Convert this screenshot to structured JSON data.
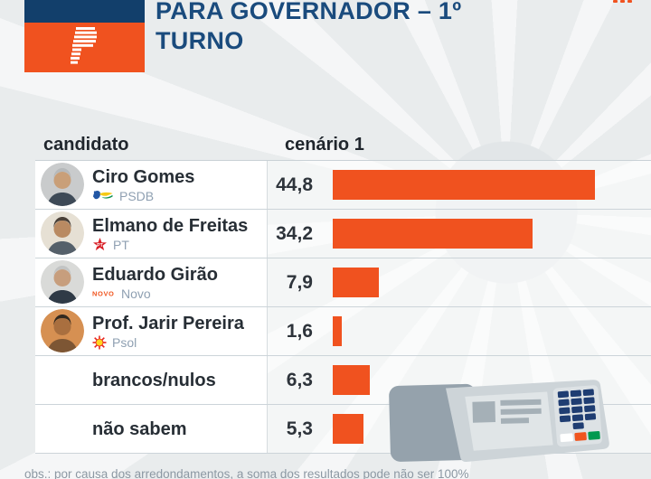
{
  "header": {
    "title_line1": "PARA GOVERNADOR – 1º",
    "title_line2": "TURNO",
    "logo_name": "poder360-striped-p-logo",
    "corner_dots_icon": "three-orange-dots"
  },
  "table": {
    "columns": {
      "candidate": "candidato",
      "scenario": "cenário 1"
    },
    "rows": [
      {
        "name": "Ciro Gomes",
        "party": "PSDB",
        "party_icon": "psdb-toucan-icon",
        "value_label": "44,8",
        "value": 44.8,
        "has_avatar": true
      },
      {
        "name": "Elmano de Freitas",
        "party": "PT",
        "party_icon": "pt-star-icon",
        "value_label": "34,2",
        "value": 34.2,
        "has_avatar": true
      },
      {
        "name": "Eduardo Girão",
        "party": "Novo",
        "party_icon": "novo-wordmark-icon",
        "value_label": "7,9",
        "value": 7.9,
        "has_avatar": true
      },
      {
        "name": "Prof. Jarir Pereira",
        "party": "Psol",
        "party_icon": "psol-sun-icon",
        "value_label": "1,6",
        "value": 1.6,
        "has_avatar": true
      },
      {
        "name": "brancos/nulos",
        "party": null,
        "party_icon": null,
        "value_label": "6,3",
        "value": 6.3,
        "has_avatar": false
      },
      {
        "name": "não sabem",
        "party": null,
        "party_icon": null,
        "value_label": "5,3",
        "value": 5.3,
        "has_avatar": false
      }
    ]
  },
  "note": "obs.: por causa dos arredondamentos, a soma dos resultados pode não ser 100%",
  "colors": {
    "accent_orange": "#f0521f",
    "title_navy": "#1a4b7d",
    "logo_navy": "#123f6b",
    "bar_color": "#f0521f",
    "background": "#e9eced"
  },
  "chart_data": {
    "type": "bar",
    "orientation": "horizontal",
    "title": "PARA GOVERNADOR – 1º TURNO",
    "scenario_label": "cenário 1",
    "categories": [
      "Ciro Gomes (PSDB)",
      "Elmano de Freitas (PT)",
      "Eduardo Girão (Novo)",
      "Prof. Jarir Pereira (Psol)",
      "brancos/nulos",
      "não sabem"
    ],
    "values": [
      44.8,
      34.2,
      7.9,
      1.6,
      6.3,
      5.3
    ],
    "unit": "%",
    "xlim": [
      0,
      46
    ],
    "bar_color": "#f0521f",
    "legend": "none",
    "grid": "off",
    "note": "obs.: por causa dos arredondamentos, a soma dos resultados pode não ser 100%"
  }
}
